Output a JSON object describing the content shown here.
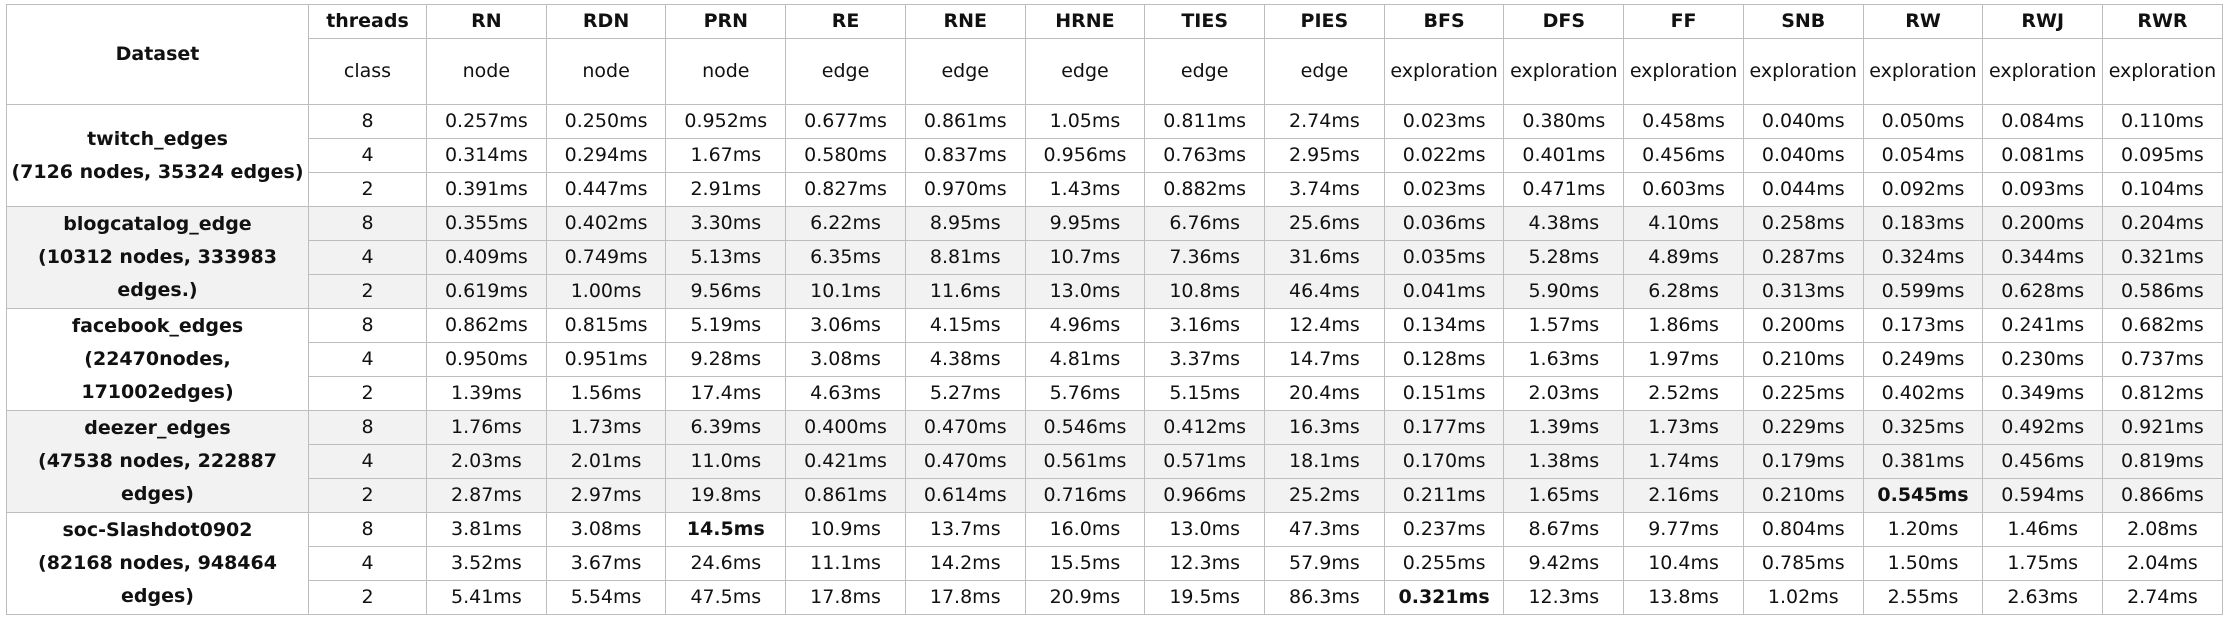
{
  "header": {
    "dataset_label": "Dataset",
    "threads_label": "threads",
    "class_label": "class",
    "columns": [
      {
        "name": "RN",
        "class": "node"
      },
      {
        "name": "RDN",
        "class": "node"
      },
      {
        "name": "PRN",
        "class": "node"
      },
      {
        "name": "RE",
        "class": "edge"
      },
      {
        "name": "RNE",
        "class": "edge"
      },
      {
        "name": "HRNE",
        "class": "edge"
      },
      {
        "name": "TIES",
        "class": "edge"
      },
      {
        "name": "PIES",
        "class": "edge"
      },
      {
        "name": "BFS",
        "class": "exploration"
      },
      {
        "name": "DFS",
        "class": "exploration"
      },
      {
        "name": "FF",
        "class": "exploration"
      },
      {
        "name": "SNB",
        "class": "exploration"
      },
      {
        "name": "RW",
        "class": "exploration"
      },
      {
        "name": "RWJ",
        "class": "exploration"
      },
      {
        "name": "RWR",
        "class": "exploration"
      }
    ]
  },
  "datasets": [
    {
      "name": "twitch_edges\n(7126 nodes, 35324 edges)",
      "rows": [
        {
          "threads": "8",
          "values": [
            "0.257ms",
            "0.250ms",
            "0.952ms",
            "0.677ms",
            "0.861ms",
            "1.05ms",
            "0.811ms",
            "2.74ms",
            "0.023ms",
            "0.380ms",
            "0.458ms",
            "0.040ms",
            "0.050ms",
            "0.084ms",
            "0.110ms"
          ],
          "bold": []
        },
        {
          "threads": "4",
          "values": [
            "0.314ms",
            "0.294ms",
            "1.67ms",
            "0.580ms",
            "0.837ms",
            "0.956ms",
            "0.763ms",
            "2.95ms",
            "0.022ms",
            "0.401ms",
            "0.456ms",
            "0.040ms",
            "0.054ms",
            "0.081ms",
            "0.095ms"
          ],
          "bold": []
        },
        {
          "threads": "2",
          "values": [
            "0.391ms",
            "0.447ms",
            "2.91ms",
            "0.827ms",
            "0.970ms",
            "1.43ms",
            "0.882ms",
            "3.74ms",
            "0.023ms",
            "0.471ms",
            "0.603ms",
            "0.044ms",
            "0.092ms",
            "0.093ms",
            "0.104ms"
          ],
          "bold": []
        }
      ]
    },
    {
      "name": "blogcatalog_edge\n(10312 nodes, 333983\nedges.)",
      "rows": [
        {
          "threads": "8",
          "values": [
            "0.355ms",
            "0.402ms",
            "3.30ms",
            "6.22ms",
            "8.95ms",
            "9.95ms",
            "6.76ms",
            "25.6ms",
            "0.036ms",
            "4.38ms",
            "4.10ms",
            "0.258ms",
            "0.183ms",
            "0.200ms",
            "0.204ms"
          ],
          "bold": []
        },
        {
          "threads": "4",
          "values": [
            "0.409ms",
            "0.749ms",
            "5.13ms",
            "6.35ms",
            "8.81ms",
            "10.7ms",
            "7.36ms",
            "31.6ms",
            "0.035ms",
            "5.28ms",
            "4.89ms",
            "0.287ms",
            "0.324ms",
            "0.344ms",
            "0.321ms"
          ],
          "bold": []
        },
        {
          "threads": "2",
          "values": [
            "0.619ms",
            "1.00ms",
            "9.56ms",
            "10.1ms",
            "11.6ms",
            "13.0ms",
            "10.8ms",
            "46.4ms",
            "0.041ms",
            "5.90ms",
            "6.28ms",
            "0.313ms",
            "0.599ms",
            "0.628ms",
            "0.586ms"
          ],
          "bold": []
        }
      ]
    },
    {
      "name": "facebook_edges\n(22470nodes,\n171002edges)",
      "rows": [
        {
          "threads": "8",
          "values": [
            "0.862ms",
            "0.815ms",
            "5.19ms",
            "3.06ms",
            "4.15ms",
            "4.96ms",
            "3.16ms",
            "12.4ms",
            "0.134ms",
            "1.57ms",
            "1.86ms",
            "0.200ms",
            "0.173ms",
            "0.241ms",
            "0.682ms"
          ],
          "bold": []
        },
        {
          "threads": "4",
          "values": [
            "0.950ms",
            "0.951ms",
            "9.28ms",
            "3.08ms",
            "4.38ms",
            "4.81ms",
            "3.37ms",
            "14.7ms",
            "0.128ms",
            "1.63ms",
            "1.97ms",
            "0.210ms",
            "0.249ms",
            "0.230ms",
            "0.737ms"
          ],
          "bold": []
        },
        {
          "threads": "2",
          "values": [
            "1.39ms",
            "1.56ms",
            "17.4ms",
            "4.63ms",
            "5.27ms",
            "5.76ms",
            "5.15ms",
            "20.4ms",
            "0.151ms",
            "2.03ms",
            "2.52ms",
            "0.225ms",
            "0.402ms",
            "0.349ms",
            "0.812ms"
          ],
          "bold": []
        }
      ]
    },
    {
      "name": "deezer_edges\n(47538 nodes, 222887\nedges)",
      "rows": [
        {
          "threads": "8",
          "values": [
            "1.76ms",
            "1.73ms",
            "6.39ms",
            "0.400ms",
            "0.470ms",
            "0.546ms",
            "0.412ms",
            "16.3ms",
            "0.177ms",
            "1.39ms",
            "1.73ms",
            "0.229ms",
            "0.325ms",
            "0.492ms",
            "0.921ms"
          ],
          "bold": []
        },
        {
          "threads": "4",
          "values": [
            "2.03ms",
            "2.01ms",
            "11.0ms",
            "0.421ms",
            "0.470ms",
            "0.561ms",
            "0.571ms",
            "18.1ms",
            "0.170ms",
            "1.38ms",
            "1.74ms",
            "0.179ms",
            "0.381ms",
            "0.456ms",
            "0.819ms"
          ],
          "bold": []
        },
        {
          "threads": "2",
          "values": [
            "2.87ms",
            "2.97ms",
            "19.8ms",
            "0.861ms",
            "0.614ms",
            "0.716ms",
            "0.966ms",
            "25.2ms",
            "0.211ms",
            "1.65ms",
            "2.16ms",
            "0.210ms",
            "0.545ms",
            "0.594ms",
            "0.866ms"
          ],
          "bold": [
            12
          ]
        }
      ]
    },
    {
      "name": "soc-Slashdot0902\n(82168 nodes, 948464\nedges)",
      "rows": [
        {
          "threads": "8",
          "values": [
            "3.81ms",
            "3.08ms",
            "14.5ms",
            "10.9ms",
            "13.7ms",
            "16.0ms",
            "13.0ms",
            "47.3ms",
            "0.237ms",
            "8.67ms",
            "9.77ms",
            "0.804ms",
            "1.20ms",
            "1.46ms",
            "2.08ms"
          ],
          "bold": [
            2
          ]
        },
        {
          "threads": "4",
          "values": [
            "3.52ms",
            "3.67ms",
            "24.6ms",
            "11.1ms",
            "14.2ms",
            "15.5ms",
            "12.3ms",
            "57.9ms",
            "0.255ms",
            "9.42ms",
            "10.4ms",
            "0.785ms",
            "1.50ms",
            "1.75ms",
            "2.04ms"
          ],
          "bold": []
        },
        {
          "threads": "2",
          "values": [
            "5.41ms",
            "5.54ms",
            "47.5ms",
            "17.8ms",
            "17.8ms",
            "20.9ms",
            "19.5ms",
            "86.3ms",
            "0.321ms",
            "12.3ms",
            "13.8ms",
            "1.02ms",
            "2.55ms",
            "2.63ms",
            "2.74ms"
          ],
          "bold": [
            8
          ]
        }
      ]
    }
  ]
}
